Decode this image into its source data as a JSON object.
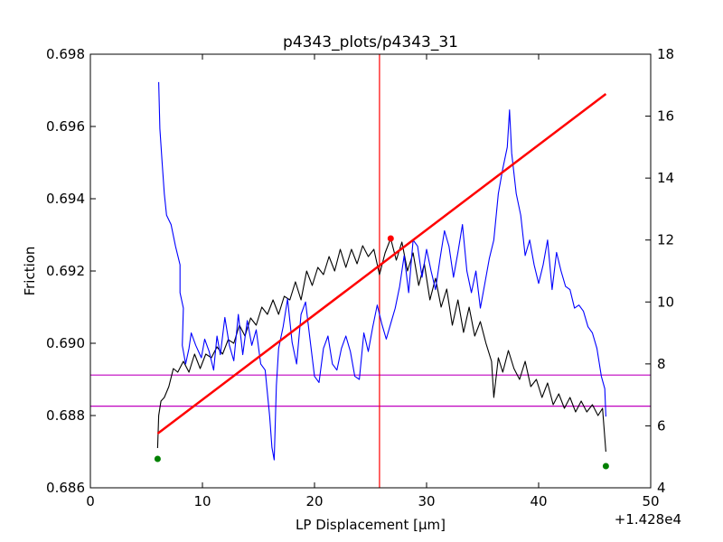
{
  "chart_data": {
    "type": "line",
    "title": "p4343_plots/p4343_31",
    "xlabel": "LP Displacement [μm]",
    "ylabel": "Friction",
    "x_offset_label": "+1.428e4",
    "xlim": [
      0,
      50
    ],
    "ylim": [
      0.686,
      0.698
    ],
    "y2lim": [
      4,
      18
    ],
    "xticks": [
      0,
      10,
      20,
      30,
      40,
      50
    ],
    "yticks": [
      0.686,
      0.688,
      0.69,
      0.692,
      0.694,
      0.696,
      0.698
    ],
    "y2ticks": [
      4,
      6,
      8,
      10,
      12,
      14,
      16,
      18
    ],
    "grid": false,
    "colors": {
      "friction": "#000000",
      "secondary": "#0000ff",
      "fit": "#ff0000",
      "vline": "#ff0000",
      "hlines": "#bf00bf",
      "endpoints": "#008000",
      "peak": "#ff0000"
    },
    "series": [
      {
        "axis": "left",
        "color": "#000000",
        "points": [
          [
            6.0,
            0.6871
          ],
          [
            6.1,
            0.688
          ],
          [
            6.3,
            0.6884
          ],
          [
            6.6,
            0.6885
          ],
          [
            7.0,
            0.6888
          ],
          [
            7.4,
            0.6893
          ],
          [
            7.8,
            0.6892
          ],
          [
            8.3,
            0.6895
          ],
          [
            8.8,
            0.6892
          ],
          [
            9.3,
            0.6897
          ],
          [
            9.8,
            0.6893
          ],
          [
            10.3,
            0.6897
          ],
          [
            10.8,
            0.6896
          ],
          [
            11.3,
            0.6899
          ],
          [
            11.8,
            0.6897
          ],
          [
            12.3,
            0.6901
          ],
          [
            12.8,
            0.69
          ],
          [
            13.3,
            0.6905
          ],
          [
            13.8,
            0.6902
          ],
          [
            14.3,
            0.6907
          ],
          [
            14.8,
            0.6905
          ],
          [
            15.3,
            0.691
          ],
          [
            15.8,
            0.6908
          ],
          [
            16.3,
            0.6912
          ],
          [
            16.8,
            0.6908
          ],
          [
            17.3,
            0.6913
          ],
          [
            17.8,
            0.6912
          ],
          [
            18.3,
            0.6917
          ],
          [
            18.8,
            0.6912
          ],
          [
            19.3,
            0.692
          ],
          [
            19.8,
            0.6916
          ],
          [
            20.3,
            0.6921
          ],
          [
            20.8,
            0.6919
          ],
          [
            21.3,
            0.6924
          ],
          [
            21.8,
            0.692
          ],
          [
            22.3,
            0.6926
          ],
          [
            22.8,
            0.6921
          ],
          [
            23.3,
            0.6926
          ],
          [
            23.8,
            0.6922
          ],
          [
            24.3,
            0.6927
          ],
          [
            24.8,
            0.6924
          ],
          [
            25.3,
            0.6926
          ],
          [
            25.8,
            0.6919
          ],
          [
            26.3,
            0.6925
          ],
          [
            26.8,
            0.6929
          ],
          [
            27.3,
            0.6923
          ],
          [
            27.8,
            0.6928
          ],
          [
            28.3,
            0.692
          ],
          [
            28.8,
            0.6925
          ],
          [
            29.3,
            0.6916
          ],
          [
            29.8,
            0.6922
          ],
          [
            30.3,
            0.6912
          ],
          [
            30.8,
            0.6918
          ],
          [
            31.3,
            0.691
          ],
          [
            31.8,
            0.6915
          ],
          [
            32.3,
            0.6905
          ],
          [
            32.8,
            0.6912
          ],
          [
            33.3,
            0.6903
          ],
          [
            33.8,
            0.691
          ],
          [
            34.3,
            0.6902
          ],
          [
            34.8,
            0.6906
          ],
          [
            35.3,
            0.69
          ],
          [
            35.8,
            0.6895
          ],
          [
            36.0,
            0.6885
          ],
          [
            36.4,
            0.6896
          ],
          [
            36.8,
            0.6892
          ],
          [
            37.3,
            0.6898
          ],
          [
            37.8,
            0.6893
          ],
          [
            38.3,
            0.689
          ],
          [
            38.8,
            0.6895
          ],
          [
            39.3,
            0.6888
          ],
          [
            39.8,
            0.689
          ],
          [
            40.3,
            0.6885
          ],
          [
            40.8,
            0.6889
          ],
          [
            41.3,
            0.6883
          ],
          [
            41.8,
            0.6886
          ],
          [
            42.3,
            0.6882
          ],
          [
            42.8,
            0.6885
          ],
          [
            43.3,
            0.6881
          ],
          [
            43.8,
            0.6884
          ],
          [
            44.3,
            0.6881
          ],
          [
            44.8,
            0.6883
          ],
          [
            45.3,
            0.688
          ],
          [
            45.7,
            0.6882
          ],
          [
            46.0,
            0.687
          ]
        ]
      },
      {
        "axis": "right",
        "color": "#0000ff",
        "points": [
          [
            6.1,
            17.1
          ],
          [
            6.2,
            15.6
          ],
          [
            6.4,
            14.5
          ],
          [
            6.6,
            13.5
          ],
          [
            6.8,
            12.8
          ],
          [
            7.2,
            12.5
          ],
          [
            7.6,
            11.8
          ],
          [
            8.0,
            11.2
          ],
          [
            8.0,
            10.3
          ],
          [
            8.3,
            9.8
          ],
          [
            8.2,
            8.6
          ],
          [
            8.5,
            8.0
          ],
          [
            8.8,
            8.5
          ],
          [
            9.0,
            9.0
          ],
          [
            9.4,
            8.6
          ],
          [
            9.9,
            8.2
          ],
          [
            10.2,
            8.8
          ],
          [
            10.6,
            8.4
          ],
          [
            11.0,
            7.8
          ],
          [
            11.3,
            8.9
          ],
          [
            11.6,
            8.3
          ],
          [
            12.0,
            9.5
          ],
          [
            12.4,
            8.6
          ],
          [
            12.8,
            8.1
          ],
          [
            13.2,
            9.6
          ],
          [
            13.6,
            8.3
          ],
          [
            14.0,
            9.4
          ],
          [
            14.4,
            8.6
          ],
          [
            14.8,
            9.1
          ],
          [
            15.2,
            8.0
          ],
          [
            15.6,
            7.8
          ],
          [
            16.0,
            6.3
          ],
          [
            16.2,
            5.3
          ],
          [
            16.4,
            4.9
          ],
          [
            16.6,
            7.3
          ],
          [
            16.8,
            8.5
          ],
          [
            17.2,
            9.2
          ],
          [
            17.6,
            10.1
          ],
          [
            18.0,
            8.7
          ],
          [
            18.4,
            8.0
          ],
          [
            18.8,
            9.6
          ],
          [
            19.2,
            10.0
          ],
          [
            19.6,
            8.8
          ],
          [
            20.0,
            7.6
          ],
          [
            20.4,
            7.4
          ],
          [
            20.8,
            8.5
          ],
          [
            21.2,
            8.9
          ],
          [
            21.6,
            8.0
          ],
          [
            22.0,
            7.8
          ],
          [
            22.4,
            8.5
          ],
          [
            22.8,
            8.9
          ],
          [
            23.2,
            8.4
          ],
          [
            23.6,
            7.6
          ],
          [
            24.0,
            7.5
          ],
          [
            24.4,
            9.0
          ],
          [
            24.8,
            8.4
          ],
          [
            25.2,
            9.2
          ],
          [
            25.6,
            9.9
          ],
          [
            26.0,
            9.3
          ],
          [
            26.4,
            8.8
          ],
          [
            26.8,
            9.3
          ],
          [
            27.2,
            9.8
          ],
          [
            27.6,
            10.5
          ],
          [
            28.0,
            11.5
          ],
          [
            28.4,
            10.3
          ],
          [
            28.8,
            12.0
          ],
          [
            29.2,
            11.8
          ],
          [
            29.6,
            10.8
          ],
          [
            30.0,
            11.7
          ],
          [
            30.4,
            11.0
          ],
          [
            30.8,
            10.4
          ],
          [
            31.2,
            11.4
          ],
          [
            31.6,
            12.3
          ],
          [
            32.0,
            11.8
          ],
          [
            32.4,
            10.8
          ],
          [
            32.8,
            11.6
          ],
          [
            33.2,
            12.5
          ],
          [
            33.6,
            11.0
          ],
          [
            34.0,
            10.3
          ],
          [
            34.4,
            11.0
          ],
          [
            34.8,
            9.8
          ],
          [
            35.2,
            10.6
          ],
          [
            35.6,
            11.4
          ],
          [
            36.0,
            12.0
          ],
          [
            36.4,
            13.5
          ],
          [
            36.8,
            14.3
          ],
          [
            37.2,
            15.0
          ],
          [
            37.4,
            16.2
          ],
          [
            37.6,
            14.8
          ],
          [
            38.0,
            13.5
          ],
          [
            38.4,
            12.8
          ],
          [
            38.8,
            11.5
          ],
          [
            39.2,
            12.0
          ],
          [
            39.6,
            11.2
          ],
          [
            40.0,
            10.6
          ],
          [
            40.4,
            11.2
          ],
          [
            40.8,
            12.0
          ],
          [
            41.2,
            10.4
          ],
          [
            41.6,
            11.6
          ],
          [
            42.0,
            11.0
          ],
          [
            42.4,
            10.5
          ],
          [
            42.8,
            10.4
          ],
          [
            43.2,
            9.8
          ],
          [
            43.6,
            9.9
          ],
          [
            44.0,
            9.7
          ],
          [
            44.4,
            9.2
          ],
          [
            44.8,
            9.0
          ],
          [
            45.2,
            8.5
          ],
          [
            45.6,
            7.6
          ],
          [
            45.9,
            7.2
          ],
          [
            46.0,
            6.3
          ]
        ]
      },
      {
        "axis": "left",
        "color": "#ff0000",
        "points": [
          [
            6.0,
            0.6875
          ],
          [
            46.0,
            0.6969
          ]
        ]
      }
    ],
    "vline_x": 25.8,
    "hlines_y": [
      0.68912,
      0.68826
    ],
    "endpoints": [
      [
        6.0,
        0.6868
      ],
      [
        46.0,
        0.6866
      ]
    ],
    "peak": [
      26.8,
      0.6929
    ]
  }
}
